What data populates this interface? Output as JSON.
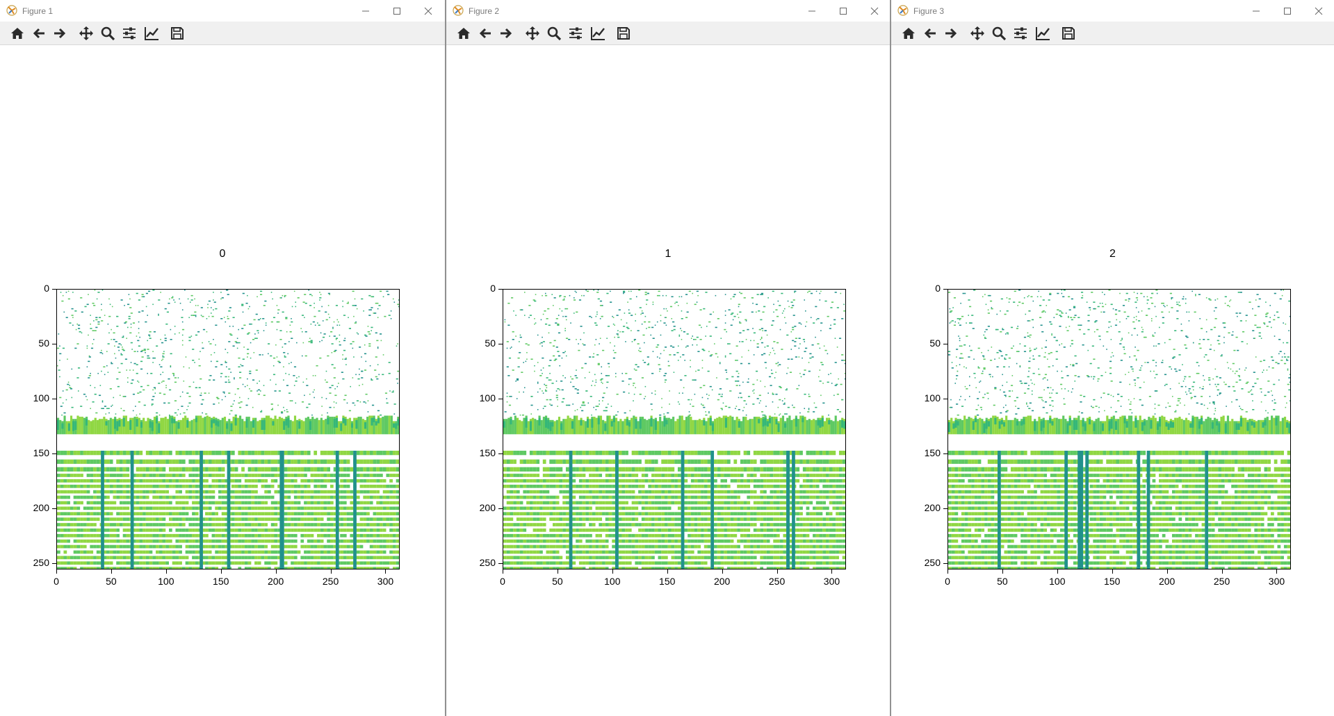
{
  "colors": {
    "toolbar_bg": "#f0f0f0",
    "icon": "#2b2b2b",
    "cmap": [
      "#21918c",
      "#35b779",
      "#5ec962",
      "#90d743"
    ]
  },
  "toolbar_icons": [
    "home-icon",
    "back-arrow-icon",
    "forward-arrow-icon",
    "pan-icon",
    "zoom-icon",
    "configure-subplots-icon",
    "edit-axis-icon",
    "save-icon"
  ],
  "windows": [
    {
      "title": "Figure 1",
      "plot_title": "0"
    },
    {
      "title": "Figure 2",
      "plot_title": "1"
    },
    {
      "title": "Figure 3",
      "plot_title": "2"
    }
  ],
  "chart_data": [
    {
      "type": "heatmap",
      "title": "0",
      "x_ticks": [
        "0",
        "50",
        "100",
        "150",
        "200",
        "250",
        "300"
      ],
      "y_ticks": [
        "0",
        "50",
        "100",
        "150",
        "200",
        "250"
      ],
      "xlim": [
        0,
        313
      ],
      "ylim": [
        256,
        0
      ],
      "solid_band_rows": [
        115,
        132
      ],
      "stripe_rows_start": 147
    },
    {
      "type": "heatmap",
      "title": "1",
      "x_ticks": [
        "0",
        "50",
        "100",
        "150",
        "200",
        "250",
        "300"
      ],
      "y_ticks": [
        "0",
        "50",
        "100",
        "150",
        "200",
        "250"
      ],
      "xlim": [
        0,
        313
      ],
      "ylim": [
        256,
        0
      ],
      "solid_band_rows": [
        115,
        132
      ],
      "stripe_rows_start": 147
    },
    {
      "type": "heatmap",
      "title": "2",
      "x_ticks": [
        "0",
        "50",
        "100",
        "150",
        "200",
        "250",
        "300"
      ],
      "y_ticks": [
        "0",
        "50",
        "100",
        "150",
        "200",
        "250"
      ],
      "xlim": [
        0,
        313
      ],
      "ylim": [
        256,
        0
      ],
      "solid_band_rows": [
        115,
        132
      ],
      "stripe_rows_start": 147
    }
  ]
}
